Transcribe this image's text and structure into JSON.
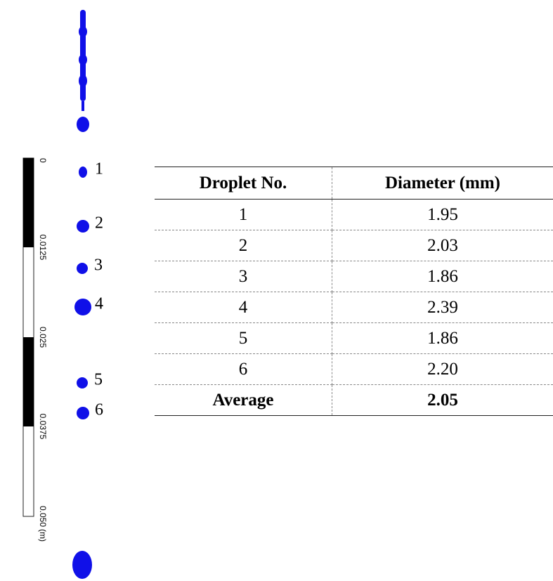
{
  "scale_bar": {
    "ticks": [
      "0",
      "0.0125",
      "0.025",
      "0.0375",
      "0.050"
    ],
    "unit": "(m)"
  },
  "droplets": {
    "labels": [
      "1",
      "2",
      "3",
      "4",
      "5",
      "6"
    ]
  },
  "table": {
    "header": [
      "Droplet No.",
      "Diameter (mm)"
    ],
    "rows": [
      [
        "1",
        "1.95"
      ],
      [
        "2",
        "2.03"
      ],
      [
        "3",
        "1.86"
      ],
      [
        "4",
        "2.39"
      ],
      [
        "5",
        "1.86"
      ],
      [
        "6",
        "2.20"
      ],
      [
        "Average",
        "2.05"
      ]
    ]
  }
}
